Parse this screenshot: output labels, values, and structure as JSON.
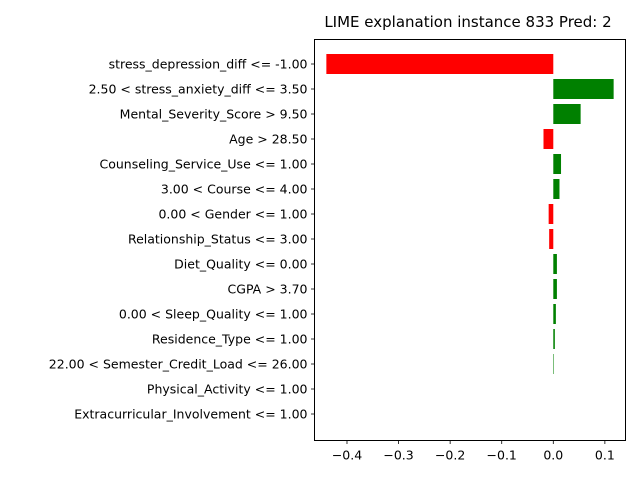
{
  "chart_data": {
    "type": "bar",
    "orientation": "horizontal",
    "title": "LIME explanation instance 833 Pred: 2",
    "xlabel": "",
    "ylabel": "",
    "xlim": [
      -0.463,
      0.14
    ],
    "xticks": [
      -0.4,
      -0.3,
      -0.2,
      -0.1,
      0.0,
      0.1
    ],
    "xtick_labels": [
      "−0.4",
      "−0.3",
      "−0.2",
      "−0.1",
      "0.0",
      "0.1"
    ],
    "grid": false,
    "colors": {
      "positive": "#008000",
      "negative": "#ff0000"
    },
    "categories": [
      "stress_depression_diff <= -1.00",
      "2.50 < stress_anxiety_diff <= 3.50",
      "Mental_Severity_Score > 9.50",
      "Age > 28.50",
      "Counseling_Service_Use <= 1.00",
      "3.00 < Course <= 4.00",
      "0.00 < Gender <= 1.00",
      "Relationship_Status <= 3.00",
      "Diet_Quality <= 0.00",
      "CGPA > 3.70",
      "0.00 < Sleep_Quality <= 1.00",
      "Residence_Type <= 1.00",
      "22.00 < Semester_Credit_Load <= 26.00",
      "Physical_Activity <= 1.00",
      "Extracurricular_Involvement <= 1.00"
    ],
    "values": [
      -0.44,
      0.117,
      0.053,
      -0.019,
      0.015,
      0.012,
      -0.009,
      -0.008,
      0.007,
      0.007,
      0.005,
      0.003,
      0.001,
      0.0,
      0.0
    ]
  }
}
